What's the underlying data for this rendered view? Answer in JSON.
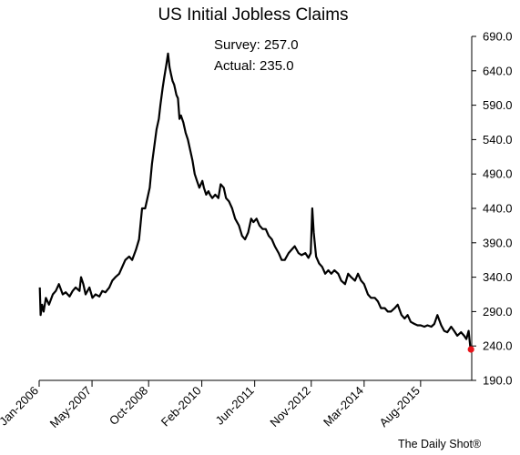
{
  "chart_data": {
    "type": "line",
    "title": "US Initial Jobless Claims",
    "annotations": {
      "survey": "Survey: 257.0",
      "actual": "Actual:  235.0"
    },
    "credit": "The Daily Shot®",
    "ylim": [
      190,
      690
    ],
    "y_ticks": [
      "690.0",
      "640.0",
      "590.0",
      "540.0",
      "490.0",
      "440.0",
      "390.0",
      "340.0",
      "290.0",
      "240.0",
      "190.0"
    ],
    "y_tick_values": [
      690,
      640,
      590,
      540,
      490,
      440,
      390,
      340,
      290,
      240,
      190
    ],
    "y_axis_position": "right",
    "x_ticks": [
      "Jan-2006",
      "May-2007",
      "Oct-2008",
      "Feb-2010",
      "Jun-2011",
      "Nov-2012",
      "Mar-2014",
      "Aug-2015"
    ],
    "x_tick_dates": [
      "2006-01-01",
      "2007-05-01",
      "2008-10-01",
      "2010-02-01",
      "2011-06-01",
      "2012-11-01",
      "2014-03-01",
      "2015-08-01"
    ],
    "grid": false,
    "line_color": "#000000",
    "last_point_color": "#e8151b",
    "series": [
      {
        "points": [
          [
            "2006-01-07",
            325
          ],
          [
            "2006-01-14",
            285
          ],
          [
            "2006-01-28",
            300
          ],
          [
            "2006-02-11",
            290
          ],
          [
            "2006-03-04",
            310
          ],
          [
            "2006-04-01",
            300
          ],
          [
            "2006-05-06",
            315
          ],
          [
            "2006-06-03",
            320
          ],
          [
            "2006-07-01",
            330
          ],
          [
            "2006-08-05",
            315
          ],
          [
            "2006-09-02",
            318
          ],
          [
            "2006-10-07",
            312
          ],
          [
            "2006-11-04",
            320
          ],
          [
            "2006-12-02",
            325
          ],
          [
            "2007-01-06",
            320
          ],
          [
            "2007-01-20",
            340
          ],
          [
            "2007-02-10",
            330
          ],
          [
            "2007-03-03",
            315
          ],
          [
            "2007-04-07",
            325
          ],
          [
            "2007-05-05",
            310
          ],
          [
            "2007-06-02",
            315
          ],
          [
            "2007-07-07",
            312
          ],
          [
            "2007-08-04",
            320
          ],
          [
            "2007-09-01",
            318
          ],
          [
            "2007-10-06",
            325
          ],
          [
            "2007-11-03",
            335
          ],
          [
            "2007-12-01",
            340
          ],
          [
            "2008-01-05",
            345
          ],
          [
            "2008-02-02",
            355
          ],
          [
            "2008-03-01",
            365
          ],
          [
            "2008-04-05",
            370
          ],
          [
            "2008-05-03",
            365
          ],
          [
            "2008-06-07",
            380
          ],
          [
            "2008-07-05",
            395
          ],
          [
            "2008-08-02",
            440
          ],
          [
            "2008-08-30",
            440
          ],
          [
            "2008-09-20",
            455
          ],
          [
            "2008-10-11",
            470
          ],
          [
            "2008-11-01",
            505
          ],
          [
            "2008-11-22",
            530
          ],
          [
            "2008-12-13",
            555
          ],
          [
            "2009-01-03",
            570
          ],
          [
            "2009-01-17",
            590
          ],
          [
            "2009-02-07",
            615
          ],
          [
            "2009-02-21",
            630
          ],
          [
            "2009-03-14",
            650
          ],
          [
            "2009-03-28",
            665
          ],
          [
            "2009-04-11",
            645
          ],
          [
            "2009-04-25",
            635
          ],
          [
            "2009-05-09",
            625
          ],
          [
            "2009-05-23",
            620
          ],
          [
            "2009-06-13",
            605
          ],
          [
            "2009-06-27",
            600
          ],
          [
            "2009-07-11",
            570
          ],
          [
            "2009-07-25",
            575
          ],
          [
            "2009-08-15",
            565
          ],
          [
            "2009-09-05",
            550
          ],
          [
            "2009-09-26",
            540
          ],
          [
            "2009-10-17",
            525
          ],
          [
            "2009-11-07",
            510
          ],
          [
            "2009-11-28",
            490
          ],
          [
            "2009-12-19",
            480
          ],
          [
            "2010-01-09",
            470
          ],
          [
            "2010-02-06",
            480
          ],
          [
            "2010-02-20",
            470
          ],
          [
            "2010-03-13",
            460
          ],
          [
            "2010-04-03",
            465
          ],
          [
            "2010-04-17",
            460
          ],
          [
            "2010-05-08",
            455
          ],
          [
            "2010-06-05",
            460
          ],
          [
            "2010-07-03",
            455
          ],
          [
            "2010-07-24",
            475
          ],
          [
            "2010-08-21",
            470
          ],
          [
            "2010-09-11",
            455
          ],
          [
            "2010-10-09",
            450
          ],
          [
            "2010-11-06",
            440
          ],
          [
            "2010-12-04",
            425
          ],
          [
            "2011-01-08",
            415
          ],
          [
            "2011-02-05",
            400
          ],
          [
            "2011-03-05",
            395
          ],
          [
            "2011-04-02",
            405
          ],
          [
            "2011-04-30",
            425
          ],
          [
            "2011-05-21",
            420
          ],
          [
            "2011-06-18",
            425
          ],
          [
            "2011-07-16",
            415
          ],
          [
            "2011-08-13",
            410
          ],
          [
            "2011-09-10",
            410
          ],
          [
            "2011-10-08",
            400
          ],
          [
            "2011-11-05",
            395
          ],
          [
            "2011-12-03",
            385
          ],
          [
            "2012-01-07",
            375
          ],
          [
            "2012-02-04",
            365
          ],
          [
            "2012-03-03",
            365
          ],
          [
            "2012-04-07",
            375
          ],
          [
            "2012-05-05",
            380
          ],
          [
            "2012-06-02",
            385
          ],
          [
            "2012-07-07",
            375
          ],
          [
            "2012-08-04",
            372
          ],
          [
            "2012-09-08",
            375
          ],
          [
            "2012-10-06",
            368
          ],
          [
            "2012-10-27",
            375
          ],
          [
            "2012-11-10",
            440
          ],
          [
            "2012-11-24",
            405
          ],
          [
            "2012-12-15",
            370
          ],
          [
            "2013-01-12",
            360
          ],
          [
            "2013-02-09",
            355
          ],
          [
            "2013-03-09",
            345
          ],
          [
            "2013-04-06",
            350
          ],
          [
            "2013-05-04",
            345
          ],
          [
            "2013-06-01",
            350
          ],
          [
            "2013-07-06",
            345
          ],
          [
            "2013-08-03",
            335
          ],
          [
            "2013-09-07",
            330
          ],
          [
            "2013-10-05",
            345
          ],
          [
            "2013-11-02",
            340
          ],
          [
            "2013-12-07",
            335
          ],
          [
            "2014-01-04",
            345
          ],
          [
            "2014-02-01",
            335
          ],
          [
            "2014-03-01",
            330
          ],
          [
            "2014-04-05",
            315
          ],
          [
            "2014-05-03",
            310
          ],
          [
            "2014-06-07",
            310
          ],
          [
            "2014-07-05",
            305
          ],
          [
            "2014-08-02",
            295
          ],
          [
            "2014-09-06",
            295
          ],
          [
            "2014-10-04",
            290
          ],
          [
            "2014-11-01",
            290
          ],
          [
            "2014-12-06",
            295
          ],
          [
            "2015-01-03",
            300
          ],
          [
            "2015-02-07",
            285
          ],
          [
            "2015-03-07",
            280
          ],
          [
            "2015-04-04",
            285
          ],
          [
            "2015-05-02",
            275
          ],
          [
            "2015-06-06",
            272
          ],
          [
            "2015-07-04",
            270
          ],
          [
            "2015-08-01",
            270
          ],
          [
            "2015-09-05",
            268
          ],
          [
            "2015-10-03",
            270
          ],
          [
            "2015-11-07",
            268
          ],
          [
            "2015-12-05",
            272
          ],
          [
            "2016-01-02",
            285
          ],
          [
            "2016-02-06",
            270
          ],
          [
            "2016-03-05",
            262
          ],
          [
            "2016-04-02",
            260
          ],
          [
            "2016-05-07",
            268
          ],
          [
            "2016-06-04",
            262
          ],
          [
            "2016-07-02",
            255
          ],
          [
            "2016-08-06",
            260
          ],
          [
            "2016-09-03",
            255
          ],
          [
            "2016-09-24",
            250
          ],
          [
            "2016-10-15",
            262
          ],
          [
            "2016-10-29",
            240
          ],
          [
            "2016-11-05",
            235
          ]
        ]
      }
    ]
  }
}
